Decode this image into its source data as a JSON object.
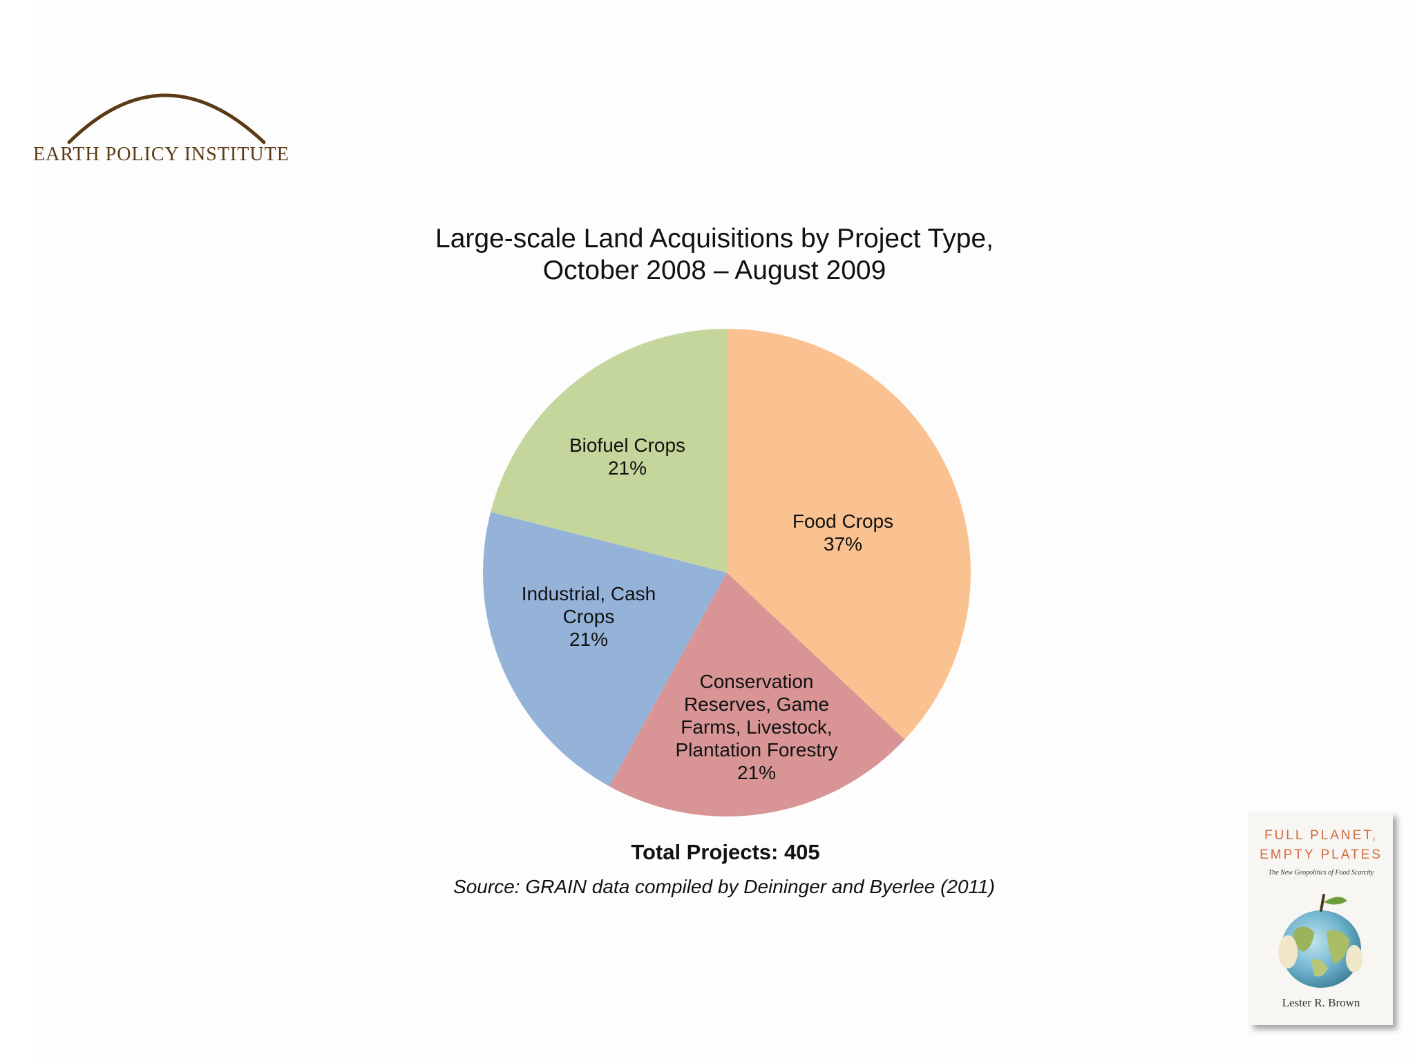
{
  "logo": {
    "text": "Earth Policy Institute"
  },
  "chart_data": {
    "type": "pie",
    "title": "Large-scale Land Acquisitions by Project Type,",
    "subtitle": "October 2008 – August 2009",
    "start": "12 o'clock",
    "direction": "clockwise",
    "slices": [
      {
        "label": "Food Crops",
        "percent_label": "37%",
        "value": 37,
        "color": "#fac191"
      },
      {
        "label": "Conservation Reserves, Game Farms, Livestock, Plantation Forestry",
        "percent_label": "21%",
        "value": 21,
        "color": "#d99595"
      },
      {
        "label": "Industrial, Cash Crops",
        "percent_label": "21%",
        "value": 21,
        "color": "#95b3d8"
      },
      {
        "label": "Biofuel Crops",
        "percent_label": "21%",
        "value": 21,
        "color": "#c4d69c"
      }
    ],
    "total_label": "Total Projects: 405",
    "source": "Source: GRAIN data compiled by Deininger and Byerlee (2011)"
  },
  "book": {
    "title_line1": "FULL PLANET,",
    "title_line2": "EMPTY PLATES",
    "subtitle": "The New Geopolitics of Food Scarcity",
    "author": "Lester R. Brown"
  },
  "colors": {
    "logo_brown": "#5b3a16",
    "book_title": "#d26a3c"
  }
}
